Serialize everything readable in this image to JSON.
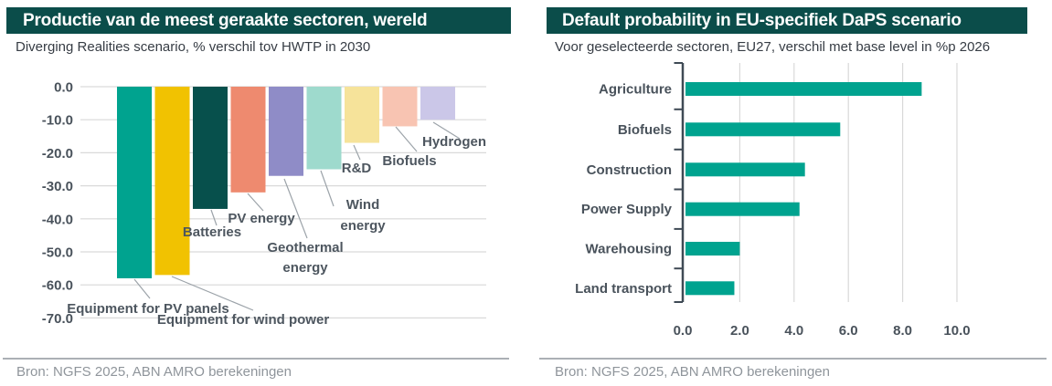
{
  "chart_data": [
    {
      "type": "bar",
      "orientation": "vertical",
      "title": "Productie van de meest geraakte sectoren, wereld",
      "subtitle": "Diverging Realities scenario, % verschil tov HWTP in 2030",
      "source": "Bron: NGFS 2025, ABN AMRO berekeningen",
      "categories": [
        "Equipment for PV panels",
        "Equipment for wind power",
        "Batteries",
        "PV energy",
        "Geothermal energy",
        "Wind energy",
        "R&D",
        "Biofuels",
        "Hydrogen"
      ],
      "values": [
        -58,
        -57,
        -37,
        -32,
        -27,
        -25,
        -17,
        -12,
        -10
      ],
      "bar_colors": [
        "#00A38F",
        "#F1C201",
        "#07504C",
        "#EE8A6F",
        "#8F8CC7",
        "#9EDACD",
        "#F6E39A",
        "#F8C4B2",
        "#CBC7E8"
      ],
      "ylim": [
        -70,
        0
      ],
      "yticks": [
        0,
        -10,
        -20,
        -30,
        -40,
        -50,
        -60,
        -70
      ],
      "ytick_labels": [
        "0.0",
        "-10.0",
        "-20.0",
        "-30.0",
        "-40.0",
        "-50.0",
        "-60.0",
        "-70.0"
      ],
      "grid": true,
      "legend": "none",
      "label_style": "callout"
    },
    {
      "type": "bar",
      "orientation": "horizontal",
      "title": "Default probability in EU-specifiek DaPS scenario",
      "subtitle": "Voor geselecteerde sectoren, EU27, verschil met base level in %p 2026",
      "source": "Bron: NGFS 2025, ABN AMRO berekeningen",
      "categories": [
        "Agriculture",
        "Biofuels",
        "Construction",
        "Power Supply",
        "Warehousing",
        "Land transport"
      ],
      "values": [
        8.7,
        5.7,
        4.4,
        4.2,
        2.0,
        1.8
      ],
      "bar_color": "#00A38F",
      "xlim": [
        0,
        10
      ],
      "xticks": [
        0,
        2,
        4,
        6,
        8,
        10
      ],
      "xtick_labels": [
        "0.0",
        "2.0",
        "4.0",
        "6.0",
        "8.0",
        "10.0"
      ],
      "grid": true,
      "legend": "none"
    }
  ],
  "colors": {
    "header_bg": "#0B4D4A",
    "header_text": "#FFFFFF",
    "teal_accent": "#00A38F",
    "axis_text": "#49525B",
    "callout_text": "#4D565F",
    "gridline": "#D9D9D9",
    "axis_line": "#3F4A55",
    "leader_line": "#9CA3A9",
    "subtitle_text": "#363C44",
    "source_text": "#8F959B",
    "divider": "#ABB0B5"
  }
}
